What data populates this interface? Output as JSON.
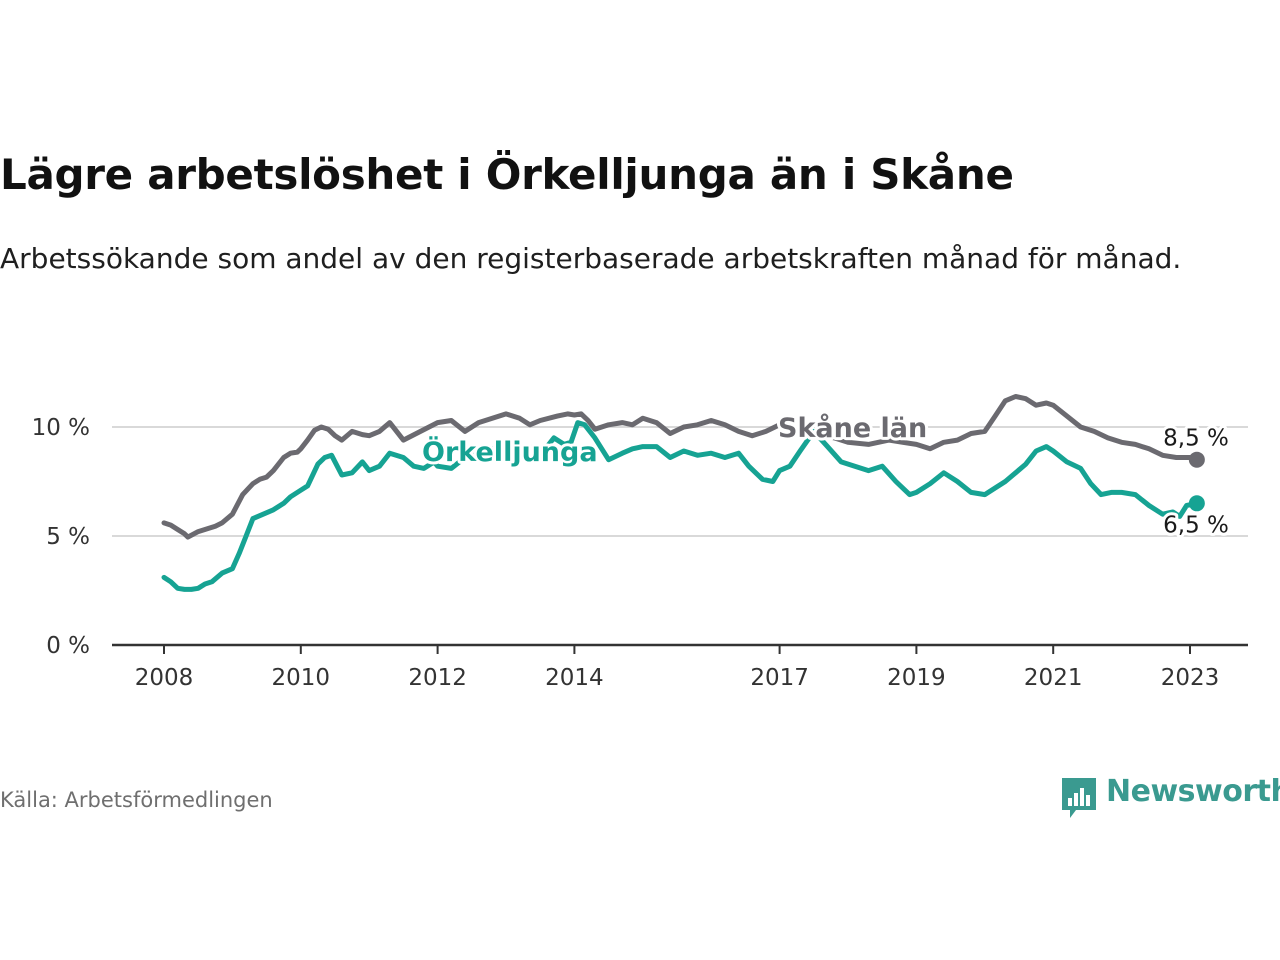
{
  "title": "Lägre arbetslöshet i Örkelljunga än i Skåne",
  "subtitle": "Arbetssökande som andel av den registerbaserade arbetskraften månad för månad.",
  "source": "Källa: Arbetsförmedlingen",
  "brand": "Newsworthy",
  "colors": {
    "skane": "#6b6a70",
    "orkelljunga": "#16a393",
    "grid": "#d9d9d9",
    "axis": "#333333",
    "brand": "#3a9a90"
  },
  "chart_data": {
    "type": "line",
    "title": "Lägre arbetslöshet i Örkelljunga än i Skåne",
    "xlabel": "",
    "ylabel": "",
    "ylim": [
      0,
      12.5
    ],
    "xlim": [
      2007.3,
      2023.9
    ],
    "yticks": [
      0,
      5,
      10
    ],
    "ytick_labels": [
      "0 %",
      "5 %",
      "10 %"
    ],
    "xticks": [
      2008,
      2010,
      2012,
      2014,
      2017,
      2019,
      2021,
      2023
    ],
    "xtick_labels": [
      "2008",
      "2010",
      "2012",
      "2014",
      "2017",
      "2019",
      "2021",
      "2023"
    ],
    "grid": true,
    "series": [
      {
        "name": "Skåne län",
        "label": "Skåne län",
        "end_label": "8,5 %",
        "x": [
          2008.0,
          2008.1,
          2008.2,
          2008.3,
          2008.35,
          2008.5,
          2008.65,
          2008.75,
          2008.85,
          2009.0,
          2009.15,
          2009.3,
          2009.4,
          2009.5,
          2009.6,
          2009.75,
          2009.85,
          2009.95,
          2010.0,
          2010.1,
          2010.2,
          2010.3,
          2010.4,
          2010.5,
          2010.6,
          2010.75,
          2010.9,
          2011.0,
          2011.15,
          2011.3,
          2011.5,
          2011.75,
          2012.0,
          2012.2,
          2012.4,
          2012.6,
          2012.8,
          2013.0,
          2013.2,
          2013.35,
          2013.5,
          2013.75,
          2013.9,
          2014.0,
          2014.1,
          2014.2,
          2014.3,
          2014.5,
          2014.7,
          2014.85,
          2015.0,
          2015.2,
          2015.4,
          2015.6,
          2015.8,
          2016.0,
          2016.2,
          2016.4,
          2016.6,
          2016.8,
          2017.0,
          2017.2,
          2017.5,
          2017.8,
          2018.0,
          2018.3,
          2018.6,
          2018.8,
          2019.0,
          2019.2,
          2019.4,
          2019.6,
          2019.8,
          2020.0,
          2020.15,
          2020.3,
          2020.45,
          2020.6,
          2020.75,
          2020.9,
          2021.0,
          2021.2,
          2021.4,
          2021.6,
          2021.8,
          2022.0,
          2022.2,
          2022.4,
          2022.6,
          2022.8,
          2023.0,
          2023.1
        ],
        "values": [
          5.6,
          5.5,
          5.3,
          5.1,
          4.95,
          5.2,
          5.35,
          5.45,
          5.6,
          6.0,
          6.9,
          7.4,
          7.6,
          7.7,
          8.0,
          8.6,
          8.8,
          8.85,
          9.0,
          9.4,
          9.85,
          10.0,
          9.9,
          9.6,
          9.4,
          9.8,
          9.65,
          9.6,
          9.8,
          10.2,
          9.4,
          9.8,
          10.2,
          10.3,
          9.8,
          10.2,
          10.4,
          10.6,
          10.4,
          10.1,
          10.3,
          10.5,
          10.6,
          10.55,
          10.6,
          10.3,
          9.9,
          10.1,
          10.2,
          10.1,
          10.4,
          10.2,
          9.7,
          10.0,
          10.1,
          10.3,
          10.1,
          9.8,
          9.6,
          9.8,
          10.1,
          9.9,
          9.7,
          9.5,
          9.3,
          9.2,
          9.4,
          9.3,
          9.2,
          9.0,
          9.3,
          9.4,
          9.7,
          9.8,
          10.5,
          11.2,
          11.4,
          11.3,
          11.0,
          11.1,
          11.0,
          10.5,
          10.0,
          9.8,
          9.5,
          9.3,
          9.2,
          9.0,
          8.7,
          8.6,
          8.6,
          8.5
        ]
      },
      {
        "name": "Örkelljunga",
        "label": "Örkelljunga",
        "end_label": "6,5 %",
        "x": [
          2008.0,
          2008.1,
          2008.2,
          2008.3,
          2008.4,
          2008.5,
          2008.6,
          2008.7,
          2008.85,
          2009.0,
          2009.1,
          2009.2,
          2009.3,
          2009.45,
          2009.6,
          2009.75,
          2009.85,
          2010.0,
          2010.1,
          2010.25,
          2010.35,
          2010.45,
          2010.6,
          2010.75,
          2010.9,
          2011.0,
          2011.15,
          2011.3,
          2011.5,
          2011.65,
          2011.8,
          2011.95,
          2012.0,
          2012.2,
          2012.4,
          2012.6,
          2012.8,
          2013.0,
          2013.2,
          2013.4,
          2013.55,
          2013.7,
          2013.85,
          2013.95,
          2014.05,
          2014.15,
          2014.3,
          2014.5,
          2014.7,
          2014.85,
          2015.0,
          2015.2,
          2015.4,
          2015.6,
          2015.8,
          2016.0,
          2016.2,
          2016.4,
          2016.55,
          2016.75,
          2016.9,
          2017.0,
          2017.15,
          2017.3,
          2017.5,
          2017.7,
          2017.9,
          2018.1,
          2018.3,
          2018.5,
          2018.7,
          2018.9,
          2019.0,
          2019.2,
          2019.4,
          2019.6,
          2019.8,
          2020.0,
          2020.15,
          2020.3,
          2020.45,
          2020.6,
          2020.75,
          2020.9,
          2021.0,
          2021.2,
          2021.4,
          2021.55,
          2021.7,
          2021.85,
          2022.0,
          2022.2,
          2022.4,
          2022.6,
          2022.75,
          2022.85,
          2022.95,
          2023.1
        ],
        "values": [
          3.1,
          2.9,
          2.6,
          2.55,
          2.55,
          2.6,
          2.8,
          2.9,
          3.3,
          3.5,
          4.2,
          5.0,
          5.8,
          6.0,
          6.2,
          6.5,
          6.8,
          7.1,
          7.3,
          8.3,
          8.6,
          8.7,
          7.8,
          7.9,
          8.4,
          8.0,
          8.2,
          8.8,
          8.6,
          8.2,
          8.1,
          8.4,
          8.2,
          8.1,
          8.6,
          8.8,
          9.0,
          8.5,
          8.7,
          9.1,
          8.9,
          9.5,
          9.2,
          9.3,
          10.2,
          10.1,
          9.5,
          8.5,
          8.8,
          9.0,
          9.1,
          9.1,
          8.6,
          8.9,
          8.7,
          8.8,
          8.6,
          8.8,
          8.2,
          7.6,
          7.5,
          8.0,
          8.2,
          8.9,
          9.8,
          9.1,
          8.4,
          8.2,
          8.0,
          8.2,
          7.5,
          6.9,
          7.0,
          7.4,
          7.9,
          7.5,
          7.0,
          6.9,
          7.2,
          7.5,
          7.9,
          8.3,
          8.9,
          9.1,
          8.9,
          8.4,
          8.1,
          7.4,
          6.9,
          7.0,
          7.0,
          6.9,
          6.4,
          6.0,
          6.1,
          5.9,
          6.4,
          6.5
        ]
      }
    ]
  }
}
